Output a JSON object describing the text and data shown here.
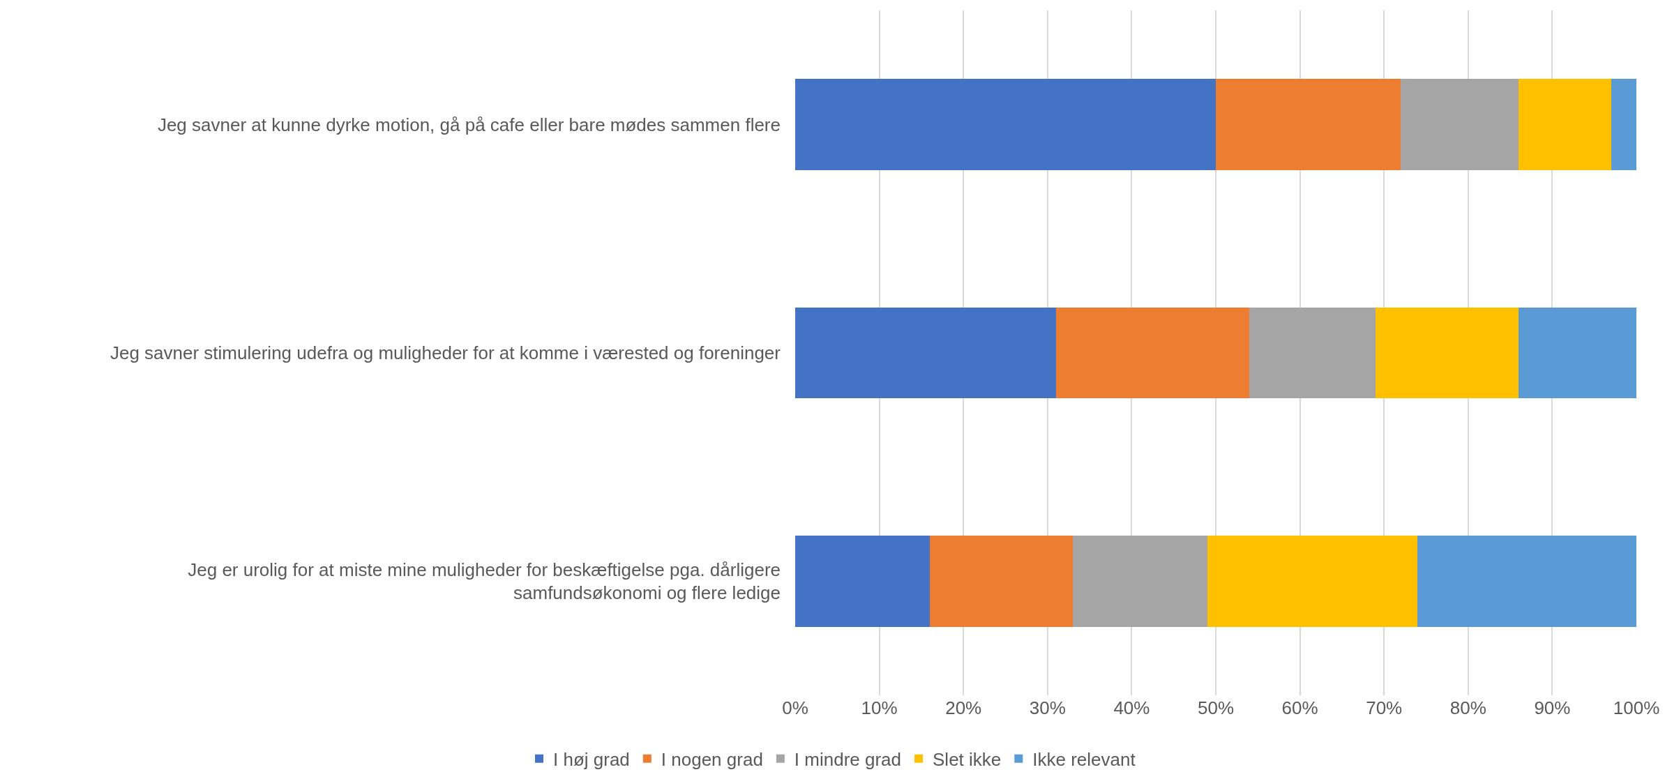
{
  "chart_data": {
    "type": "bar",
    "orientation": "horizontal",
    "stacked": true,
    "categories": [
      "Jeg savner at kunne dyrke motion, gå på cafe eller bare mødes sammen flere",
      "Jeg savner stimulering udefra og muligheder for at komme i værested og foreninger",
      "Jeg er urolig for at miste mine muligheder for beskæftigelse pga. dårligere samfundsøkonomi og flere ledige"
    ],
    "series": [
      {
        "name": "I høj grad",
        "color": "#4472c4",
        "values": [
          50,
          31,
          16
        ]
      },
      {
        "name": "I nogen grad",
        "color": "#ed7d31",
        "values": [
          22,
          23,
          17
        ]
      },
      {
        "name": "I mindre grad",
        "color": "#a5a5a5",
        "values": [
          14,
          15,
          16
        ]
      },
      {
        "name": "Slet ikke",
        "color": "#ffc000",
        "values": [
          11,
          17,
          25
        ]
      },
      {
        "name": "Ikke relevant",
        "color": "#5b9bd5",
        "values": [
          3,
          14,
          26
        ]
      }
    ],
    "xlim": [
      0,
      100
    ],
    "xticks": [
      {
        "value": 0,
        "label": "0%"
      },
      {
        "value": 10,
        "label": "10%"
      },
      {
        "value": 20,
        "label": "20%"
      },
      {
        "value": 30,
        "label": "30%"
      },
      {
        "value": 40,
        "label": "40%"
      },
      {
        "value": 50,
        "label": "50%"
      },
      {
        "value": 60,
        "label": "60%"
      },
      {
        "value": 70,
        "label": "70%"
      },
      {
        "value": 80,
        "label": "80%"
      },
      {
        "value": 90,
        "label": "90%"
      },
      {
        "value": 100,
        "label": "100%"
      }
    ],
    "grid": "x",
    "legend": "bottom"
  }
}
